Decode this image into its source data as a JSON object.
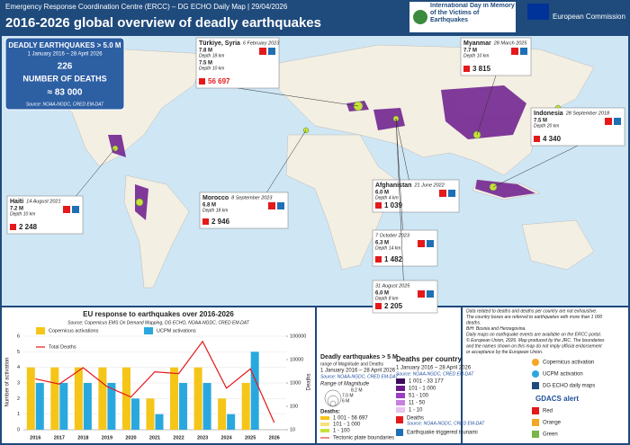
{
  "header": {
    "subtitle": "Emergency Response Coordination Centre (ERCC) – DG ECHO Daily Map | 29/04/2026",
    "title": "2016-2026 global overview of deadly earthquakes",
    "logo": "International Day in Memory of the Victims of Earthquakes",
    "commission": "European Commission"
  },
  "summary": {
    "title": "DEADLY EARTHQUAKES > 5.0 M",
    "period": "1 January 2016 – 28 April 2026",
    "count": "226",
    "deaths_label": "NUMBER OF DEATHS",
    "deaths": "≈ 83 000",
    "source": "Source: NOAA-NGDC, CRED EM-DAT"
  },
  "events": [
    {
      "place": "Türkiye, Syria",
      "date": "6 February 2023",
      "shocks": [
        {
          "mag": "7.8 M",
          "depth": "Depth 18 km"
        },
        {
          "mag": "7.5 M",
          "depth": "Depth 10 km"
        }
      ],
      "deaths": "56 697"
    },
    {
      "place": "Myanmar",
      "date": "28 March 2025",
      "shocks": [
        {
          "mag": "7.7 M",
          "depth": "Depth 10 km"
        }
      ],
      "deaths": "3 815"
    },
    {
      "place": "Indonesia",
      "date": "28 September 2018",
      "shocks": [
        {
          "mag": "7.5 M",
          "depth": "Depth 20 km"
        }
      ],
      "deaths": "4 340"
    },
    {
      "place": "Haiti",
      "date": "14 August 2021",
      "shocks": [
        {
          "mag": "7.2 M",
          "depth": "Depth 10 km"
        }
      ],
      "deaths": "2 248"
    },
    {
      "place": "Morocco",
      "date": "8 September 2023",
      "shocks": [
        {
          "mag": "6.8 M",
          "depth": "Depth 18 km"
        }
      ],
      "deaths": "2 946"
    },
    {
      "place": "Afghanistan",
      "date": "21 June 2022",
      "shocks": [
        {
          "mag": "6.0 M",
          "depth": "Depth 4 km"
        }
      ],
      "deaths": "1 039"
    },
    {
      "date": "7 October 2023",
      "shocks": [
        {
          "mag": "6.3 M",
          "depth": "Depth 14 km"
        }
      ],
      "deaths": "1 482"
    },
    {
      "date": "31 August 2025",
      "shocks": [
        {
          "mag": "6.0 M",
          "depth": "Depth 8 km"
        }
      ],
      "deaths": "2 205"
    }
  ],
  "chart_data": {
    "type": "bar",
    "title": "EU response to earthquakes over 2016-2026",
    "subtitle": "Source: Copernicus EMS On Demand Mapping, DG ECHO, NOAA-NGDC, CRED EM-DAT",
    "ylabel": "Number of activation",
    "y2label": "Deaths",
    "categories": [
      "2016",
      "2017",
      "2018",
      "2019",
      "2020",
      "2021",
      "2022",
      "2023",
      "2024",
      "2025",
      "2026"
    ],
    "series": [
      {
        "name": "Copernicus activations",
        "color": "#f5c518",
        "values": [
          4,
          4,
          4,
          4,
          4,
          2,
          4,
          4,
          2,
          3,
          0
        ]
      },
      {
        "name": "UCPM activations",
        "color": "#29a8e0",
        "values": [
          3,
          3,
          3,
          3,
          2,
          1,
          3,
          3,
          1,
          5,
          0
        ]
      },
      {
        "name": "Total Deaths",
        "color": "#e3191c",
        "type": "line",
        "axis": "y2",
        "values": [
          1500,
          900,
          4500,
          700,
          250,
          3000,
          2500,
          60000,
          600,
          4000,
          20
        ]
      }
    ],
    "ylim": [
      0,
      6
    ],
    "yticks": [
      0,
      1,
      2,
      3,
      4,
      5,
      6
    ],
    "y2lim": [
      10,
      100000
    ],
    "y2ticks": [
      10,
      100,
      1000,
      10000,
      100000
    ],
    "y2log": true
  },
  "legend": {
    "title": "Deadly earthquakes > 5 M",
    "subtitle": "range of Magnitude and Deaths",
    "period": "1 January 2016 – 28 April 2026",
    "source": "Source: NOAA-NGDC, CRED EM-DAT",
    "mag_title": "Range of Magnitude",
    "mags": [
      "8.2 M",
      "7.0 M",
      "6 M",
      "5.0 M"
    ],
    "deaths_title": "Deaths:",
    "deaths": [
      "1 001 - 56 697",
      "101 - 1 000",
      "1 - 100"
    ],
    "plates": "Tectonic plate boundaries"
  },
  "country_legend": {
    "title": "Deaths per country",
    "period": "1 January 2016 – 28 April 2026",
    "source": "Source: NOAA-NGDC, CRED EM-DAT",
    "classes": [
      "1 001 - 33 177",
      "101 - 1 000",
      "51 - 100",
      "11 - 50",
      "1 - 10"
    ],
    "deaths": "Deaths",
    "deaths_source": "Source: NOAA-NGDC, CRED EM-DAT",
    "tsunami": "Earthquake triggered tsunami"
  },
  "notes": [
    "Data related to deaths and deaths per country are not exhaustive.",
    "The country boxes are referred to earthquakes with more than 1 000",
    "deaths.",
    "BiH: Bosnia and Herzegovina.",
    "Daily maps on earthquake events are available on the ERCC portal.",
    "© European Union, 2026. Map produced by the JRC. The boundaries",
    "and the names shown on this map do not imply official endorsement",
    "or acceptance by the European Union."
  ],
  "icons": {
    "copernicus": "Copernicus activation",
    "ucpm": "UCPM activation",
    "daily": "DG ECHO daily maps",
    "gdacs": "GDACS alert",
    "red": "Red",
    "orange": "Orange",
    "green": "Green"
  }
}
